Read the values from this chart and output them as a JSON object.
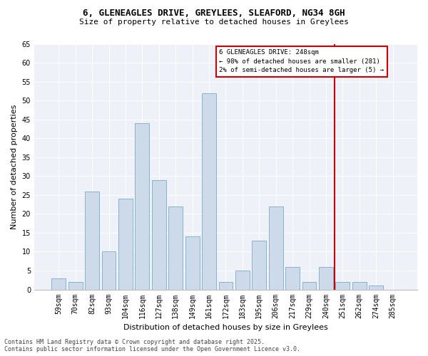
{
  "title_line1": "6, GLENEAGLES DRIVE, GREYLEES, SLEAFORD, NG34 8GH",
  "title_line2": "Size of property relative to detached houses in Greylees",
  "xlabel": "Distribution of detached houses by size in Greylees",
  "ylabel": "Number of detached properties",
  "categories": [
    "59sqm",
    "70sqm",
    "82sqm",
    "93sqm",
    "104sqm",
    "116sqm",
    "127sqm",
    "138sqm",
    "149sqm",
    "161sqm",
    "172sqm",
    "183sqm",
    "195sqm",
    "206sqm",
    "217sqm",
    "229sqm",
    "240sqm",
    "251sqm",
    "262sqm",
    "274sqm",
    "285sqm"
  ],
  "values": [
    3,
    2,
    26,
    10,
    24,
    44,
    29,
    22,
    14,
    52,
    2,
    5,
    13,
    22,
    6,
    2,
    6,
    2,
    2,
    1,
    0
  ],
  "bar_color": "#cddaea",
  "bar_edge_color": "#7aaac8",
  "vline_x_index": 17,
  "vline_color": "#cc0000",
  "annotation_title": "6 GLENEAGLES DRIVE: 248sqm",
  "annotation_line1": "← 98% of detached houses are smaller (281)",
  "annotation_line2": "2% of semi-detached houses are larger (5) →",
  "annotation_box_edge_color": "#cc0000",
  "ylim": [
    0,
    65
  ],
  "yticks": [
    0,
    5,
    10,
    15,
    20,
    25,
    30,
    35,
    40,
    45,
    50,
    55,
    60,
    65
  ],
  "footnote_line1": "Contains HM Land Registry data © Crown copyright and database right 2025.",
  "footnote_line2": "Contains public sector information licensed under the Open Government Licence v3.0.",
  "background_color": "#ffffff",
  "plot_background_color": "#eef2f8",
  "grid_color": "#ffffff",
  "title_fontsize": 9,
  "subtitle_fontsize": 8,
  "ylabel_fontsize": 8,
  "xlabel_fontsize": 8,
  "tick_fontsize": 7,
  "footnote_fontsize": 6
}
